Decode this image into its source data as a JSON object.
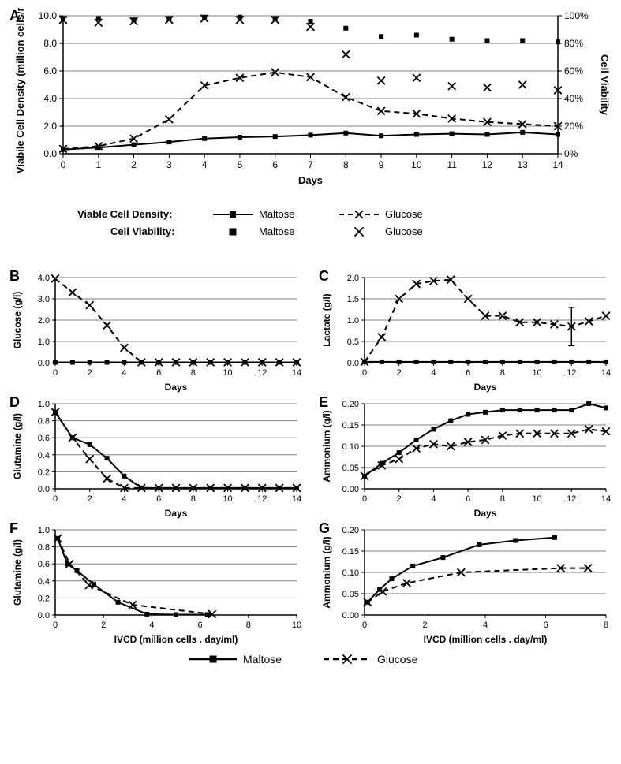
{
  "global": {
    "font_family": "Arial, Helvetica, sans-serif",
    "stroke_color": "#000000",
    "marker_fill": "#000000",
    "background": "#ffffff",
    "gridline_color": "#808080",
    "axis_label_fontsize": 13,
    "tick_fontsize": 12,
    "panel_label_fontsize": 18,
    "line_width": 2,
    "marker_size": 6
  },
  "panelA": {
    "label": "A",
    "xlabel": "Days",
    "ylabel_left": "Viabile Cell Density (million cells/ml)",
    "ylabel_right": "Cell Viability",
    "xlim": [
      0,
      14
    ],
    "xtick_step": 1,
    "ylim_left": [
      0.0,
      10.0
    ],
    "ytick_left_step": 2.0,
    "ylim_right": [
      0,
      100
    ],
    "ytick_right_step": 20,
    "ytick_right_labels": [
      "0%",
      "20%",
      "40%",
      "60%",
      "80%",
      "100%"
    ],
    "grid": true,
    "series": {
      "vcd_maltose": {
        "label": "Maltose",
        "legend_group": "Viable Cell Density:",
        "style": "solid",
        "marker": "square",
        "data": [
          [
            0,
            0.3
          ],
          [
            1,
            0.45
          ],
          [
            2,
            0.65
          ],
          [
            3,
            0.85
          ],
          [
            4,
            1.1
          ],
          [
            5,
            1.2
          ],
          [
            6,
            1.25
          ],
          [
            7,
            1.35
          ],
          [
            8,
            1.5
          ],
          [
            9,
            1.3
          ],
          [
            10,
            1.4
          ],
          [
            11,
            1.45
          ],
          [
            12,
            1.4
          ],
          [
            13,
            1.55
          ],
          [
            14,
            1.4
          ]
        ]
      },
      "vcd_glucose": {
        "label": "Glucose",
        "legend_group": "Viable Cell Density:",
        "style": "dashed",
        "marker": "x",
        "data": [
          [
            0,
            0.35
          ],
          [
            1,
            0.55
          ],
          [
            2,
            1.1
          ],
          [
            3,
            2.5
          ],
          [
            4,
            4.95
          ],
          [
            5,
            5.5
          ],
          [
            6,
            5.9
          ],
          [
            7,
            5.55
          ],
          [
            8,
            4.1
          ],
          [
            9,
            3.1
          ],
          [
            10,
            2.9
          ],
          [
            11,
            2.55
          ],
          [
            12,
            2.3
          ],
          [
            13,
            2.15
          ],
          [
            14,
            2.0
          ]
        ]
      },
      "viab_maltose": {
        "label": "Maltose",
        "legend_group": "Cell Viability:",
        "style": "points",
        "marker": "square",
        "axis": "right",
        "data": [
          [
            0,
            98
          ],
          [
            1,
            98
          ],
          [
            2,
            97
          ],
          [
            3,
            98
          ],
          [
            4,
            99
          ],
          [
            5,
            99
          ],
          [
            6,
            98
          ],
          [
            7,
            96
          ],
          [
            8,
            91
          ],
          [
            9,
            85
          ],
          [
            10,
            86
          ],
          [
            11,
            83
          ],
          [
            12,
            82
          ],
          [
            13,
            82
          ],
          [
            14,
            81
          ]
        ]
      },
      "viab_glucose": {
        "label": "Glucose",
        "legend_group": "Cell Viability:",
        "style": "points",
        "marker": "x",
        "axis": "right",
        "data": [
          [
            0,
            97
          ],
          [
            1,
            95
          ],
          [
            2,
            96
          ],
          [
            3,
            97
          ],
          [
            4,
            98
          ],
          [
            5,
            97
          ],
          [
            6,
            97
          ],
          [
            7,
            92
          ],
          [
            8,
            72
          ],
          [
            9,
            53
          ],
          [
            10,
            55
          ],
          [
            11,
            49
          ],
          [
            12,
            48
          ],
          [
            13,
            50
          ],
          [
            14,
            46
          ]
        ]
      }
    }
  },
  "panelB": {
    "label": "B",
    "xlabel": "Days",
    "ylabel": "Glucose (g/l)",
    "xlim": [
      0,
      14
    ],
    "xtick_step": 2,
    "ylim": [
      0.0,
      4.0
    ],
    "ytick_step": 1.0,
    "series": {
      "maltose": {
        "style": "solid",
        "marker": "square",
        "data": [
          [
            0,
            0.02
          ],
          [
            1,
            0.02
          ],
          [
            2,
            0.02
          ],
          [
            3,
            0.02
          ],
          [
            4,
            0.02
          ],
          [
            5,
            0.02
          ],
          [
            6,
            0.02
          ],
          [
            7,
            0.02
          ],
          [
            8,
            0.02
          ],
          [
            9,
            0.02
          ],
          [
            10,
            0.02
          ],
          [
            11,
            0.02
          ],
          [
            12,
            0.02
          ],
          [
            13,
            0.02
          ],
          [
            14,
            0.02
          ]
        ]
      },
      "glucose": {
        "style": "dashed",
        "marker": "x",
        "data": [
          [
            0,
            3.95
          ],
          [
            1,
            3.3
          ],
          [
            2,
            2.7
          ],
          [
            3,
            1.75
          ],
          [
            4,
            0.7
          ],
          [
            5,
            0.02
          ],
          [
            6,
            0.02
          ],
          [
            7,
            0.02
          ],
          [
            8,
            0.02
          ],
          [
            9,
            0.02
          ],
          [
            10,
            0.02
          ],
          [
            11,
            0.02
          ],
          [
            12,
            0.02
          ],
          [
            13,
            0.02
          ],
          [
            14,
            0.02
          ]
        ]
      }
    }
  },
  "panelC": {
    "label": "C",
    "xlabel": "Days",
    "ylabel": "Lactate (g/l)",
    "xlim": [
      0,
      14
    ],
    "xtick_step": 2,
    "ylim": [
      0.0,
      2.0
    ],
    "ytick_step": 0.5,
    "series": {
      "maltose": {
        "style": "solid",
        "marker": "square",
        "data": [
          [
            0,
            0.02
          ],
          [
            1,
            0.02
          ],
          [
            2,
            0.02
          ],
          [
            3,
            0.02
          ],
          [
            4,
            0.02
          ],
          [
            5,
            0.02
          ],
          [
            6,
            0.02
          ],
          [
            7,
            0.02
          ],
          [
            8,
            0.02
          ],
          [
            9,
            0.02
          ],
          [
            10,
            0.02
          ],
          [
            11,
            0.02
          ],
          [
            12,
            0.02
          ],
          [
            13,
            0.02
          ],
          [
            14,
            0.02
          ]
        ]
      },
      "glucose": {
        "style": "dashed",
        "marker": "x",
        "data": [
          [
            0,
            0.02
          ],
          [
            1,
            0.6
          ],
          [
            2,
            1.5
          ],
          [
            3,
            1.85
          ],
          [
            4,
            1.92
          ],
          [
            5,
            1.95
          ],
          [
            6,
            1.5
          ],
          [
            7,
            1.1
          ],
          [
            8,
            1.1
          ],
          [
            9,
            0.95
          ],
          [
            10,
            0.95
          ],
          [
            11,
            0.9
          ],
          [
            12,
            0.85
          ],
          [
            13,
            0.97
          ],
          [
            14,
            1.1
          ]
        ],
        "errorbars": [
          [
            12,
            0.85,
            0.45
          ]
        ]
      }
    }
  },
  "panelD": {
    "label": "D",
    "xlabel": "Days",
    "ylabel": "Glutamine (g/l)",
    "xlim": [
      0,
      14
    ],
    "xtick_step": 2,
    "ylim": [
      0.0,
      1.0
    ],
    "ytick_step": 0.2,
    "series": {
      "maltose": {
        "style": "solid",
        "marker": "square",
        "data": [
          [
            0,
            0.9
          ],
          [
            1,
            0.6
          ],
          [
            2,
            0.52
          ],
          [
            3,
            0.36
          ],
          [
            4,
            0.15
          ],
          [
            5,
            0.01
          ],
          [
            6,
            0.01
          ],
          [
            7,
            0.01
          ],
          [
            8,
            0.01
          ],
          [
            9,
            0.01
          ],
          [
            10,
            0.01
          ],
          [
            11,
            0.01
          ],
          [
            12,
            0.01
          ],
          [
            13,
            0.01
          ],
          [
            14,
            0.01
          ]
        ]
      },
      "glucose": {
        "style": "dashed",
        "marker": "x",
        "data": [
          [
            0,
            0.9
          ],
          [
            1,
            0.6
          ],
          [
            2,
            0.35
          ],
          [
            3,
            0.12
          ],
          [
            4,
            0.01
          ],
          [
            5,
            0.01
          ],
          [
            6,
            0.01
          ],
          [
            7,
            0.01
          ],
          [
            8,
            0.01
          ],
          [
            9,
            0.01
          ],
          [
            10,
            0.01
          ],
          [
            11,
            0.01
          ],
          [
            12,
            0.01
          ],
          [
            13,
            0.01
          ],
          [
            14,
            0.01
          ]
        ]
      }
    }
  },
  "panelE": {
    "label": "E",
    "xlabel": "Days",
    "ylabel": "Ammonium (g/l)",
    "xlim": [
      0,
      14
    ],
    "xtick_step": 2,
    "ylim": [
      0.0,
      0.2
    ],
    "ytick_step": 0.05,
    "series": {
      "maltose": {
        "style": "solid",
        "marker": "square",
        "data": [
          [
            0,
            0.03
          ],
          [
            1,
            0.06
          ],
          [
            2,
            0.085
          ],
          [
            3,
            0.115
          ],
          [
            4,
            0.14
          ],
          [
            5,
            0.16
          ],
          [
            6,
            0.175
          ],
          [
            7,
            0.18
          ],
          [
            8,
            0.185
          ],
          [
            9,
            0.185
          ],
          [
            10,
            0.185
          ],
          [
            11,
            0.185
          ],
          [
            12,
            0.185
          ],
          [
            13,
            0.2
          ],
          [
            14,
            0.19
          ]
        ]
      },
      "glucose": {
        "style": "dashed",
        "marker": "x",
        "data": [
          [
            0,
            0.03
          ],
          [
            1,
            0.055
          ],
          [
            2,
            0.07
          ],
          [
            3,
            0.095
          ],
          [
            4,
            0.105
          ],
          [
            5,
            0.1
          ],
          [
            6,
            0.11
          ],
          [
            7,
            0.115
          ],
          [
            8,
            0.125
          ],
          [
            9,
            0.13
          ],
          [
            10,
            0.13
          ],
          [
            11,
            0.13
          ],
          [
            12,
            0.13
          ],
          [
            13,
            0.14
          ],
          [
            14,
            0.135
          ]
        ]
      }
    }
  },
  "panelF": {
    "label": "F",
    "xlabel": "IVCD (million cells . day/ml)",
    "ylabel": "Glutamine (g/l)",
    "xlim": [
      0.0,
      10.0
    ],
    "xtick_step": 2.0,
    "ylim": [
      0.0,
      1.0
    ],
    "ytick_step": 0.2,
    "series": {
      "maltose": {
        "style": "solid",
        "marker": "square",
        "data": [
          [
            0.1,
            0.9
          ],
          [
            0.5,
            0.6
          ],
          [
            0.9,
            0.52
          ],
          [
            1.6,
            0.36
          ],
          [
            2.6,
            0.15
          ],
          [
            3.8,
            0.01
          ],
          [
            5.0,
            0.005
          ],
          [
            6.3,
            0.005
          ]
        ]
      },
      "glucose": {
        "style": "dashed",
        "marker": "x",
        "data": [
          [
            0.1,
            0.9
          ],
          [
            0.6,
            0.6
          ],
          [
            1.4,
            0.35
          ],
          [
            3.2,
            0.12
          ],
          [
            6.5,
            0.01
          ]
        ]
      }
    }
  },
  "panelG": {
    "label": "G",
    "xlabel": "IVCD (million cells . day/ml)",
    "ylabel": "Ammonium (g/l)",
    "xlim": [
      0.0,
      8.0
    ],
    "xtick_step": 2.0,
    "ylim": [
      0.0,
      0.2
    ],
    "ytick_step": 0.05,
    "series": {
      "maltose": {
        "style": "solid",
        "marker": "square",
        "data": [
          [
            0.1,
            0.03
          ],
          [
            0.5,
            0.06
          ],
          [
            0.9,
            0.085
          ],
          [
            1.6,
            0.115
          ],
          [
            2.6,
            0.135
          ],
          [
            3.8,
            0.165
          ],
          [
            5.0,
            0.175
          ],
          [
            6.3,
            0.182
          ]
        ]
      },
      "glucose": {
        "style": "dashed",
        "marker": "x",
        "data": [
          [
            0.1,
            0.03
          ],
          [
            0.6,
            0.055
          ],
          [
            1.4,
            0.075
          ],
          [
            3.2,
            0.1
          ],
          [
            6.5,
            0.11
          ],
          [
            7.4,
            0.11
          ]
        ]
      }
    }
  },
  "legend_bottom": {
    "maltose_label": "Maltose",
    "glucose_label": "Glucose"
  },
  "legend_A": {
    "group1": "Viable Cell Density:",
    "group2": "Cell Viability:",
    "maltose": "Maltose",
    "glucose": "Glucose"
  }
}
